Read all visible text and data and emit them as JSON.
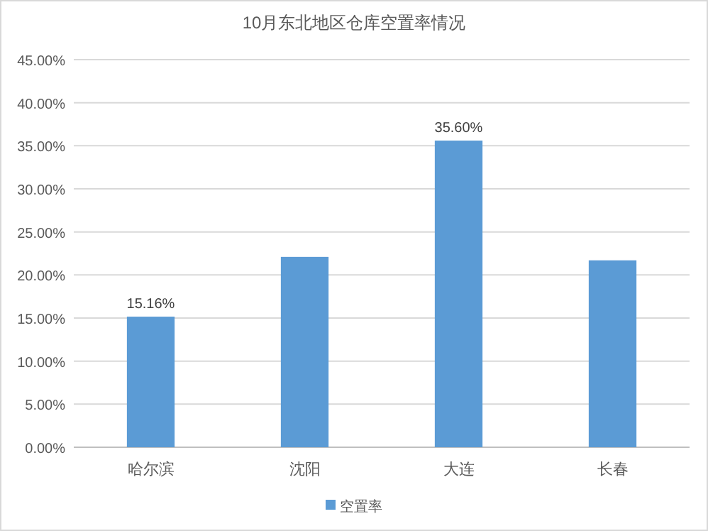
{
  "chart_data": {
    "type": "bar",
    "title": "10月东北地区仓库空置率情况",
    "categories": [
      "哈尔滨",
      "沈阳",
      "大连",
      "长春"
    ],
    "series": [
      {
        "name": "空置率",
        "color": "#5b9bd5",
        "values": [
          15.16,
          22.1,
          35.6,
          21.7
        ],
        "value_labels": [
          "15.16%",
          null,
          "35.60%",
          null
        ]
      }
    ],
    "ylim": [
      0,
      45
    ],
    "yticks": [
      {
        "value": 0,
        "label": "0.00%"
      },
      {
        "value": 5,
        "label": "5.00%"
      },
      {
        "value": 10,
        "label": "10.00%"
      },
      {
        "value": 15,
        "label": "15.00%"
      },
      {
        "value": 20,
        "label": "20.00%"
      },
      {
        "value": 25,
        "label": "25.00%"
      },
      {
        "value": 30,
        "label": "30.00%"
      },
      {
        "value": 35,
        "label": "35.00%"
      },
      {
        "value": 40,
        "label": "40.00%"
      },
      {
        "value": 45,
        "label": "45.00%"
      }
    ],
    "grid": "y",
    "legend": "bottom"
  }
}
